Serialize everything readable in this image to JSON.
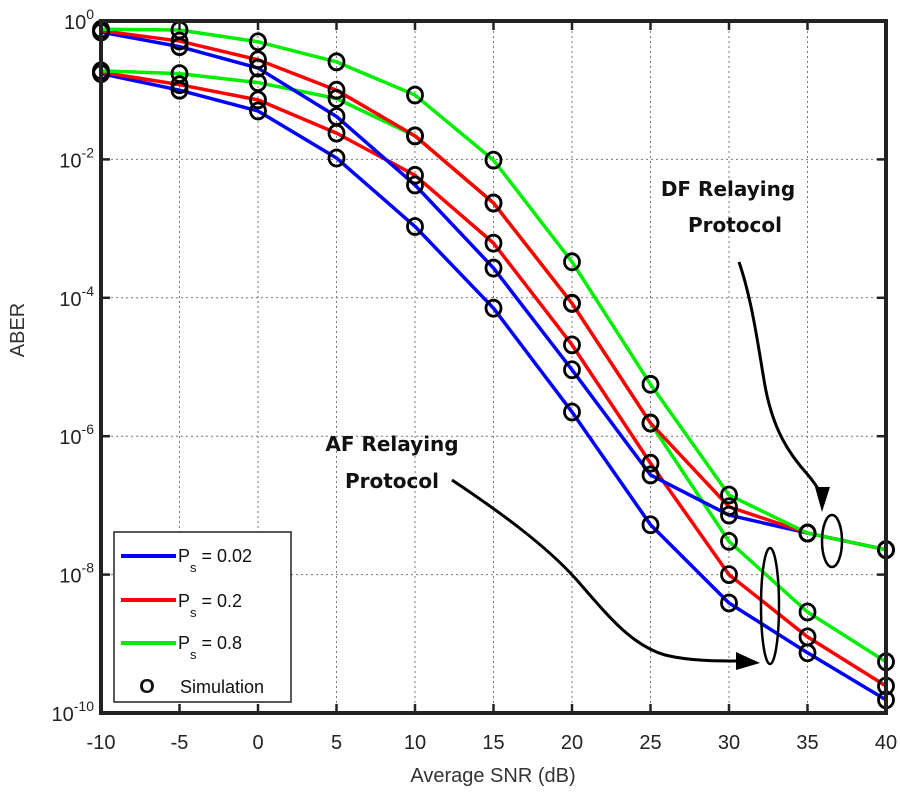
{
  "chart_data": {
    "type": "line",
    "title": "",
    "xlabel": "Average SNR (dB)",
    "ylabel": "ABER",
    "xlim": [
      -10,
      40
    ],
    "ylim_log10": [
      -10,
      0
    ],
    "yscale": "log",
    "grid": true,
    "x_ticks": [
      -10,
      -5,
      0,
      5,
      10,
      15,
      20,
      25,
      30,
      35,
      40
    ],
    "x_tick_labels": [
      "-10",
      "-5",
      "0",
      "5",
      "10",
      "15",
      "20",
      "25",
      "30",
      "35",
      "40"
    ],
    "y_ticks_log10": [
      0,
      -2,
      -4,
      -6,
      -8,
      -10
    ],
    "y_tick_labels": [
      {
        "base": "10",
        "exp": "0"
      },
      {
        "base": "10",
        "exp": "-2"
      },
      {
        "base": "10",
        "exp": "-4"
      },
      {
        "base": "10",
        "exp": "-6"
      },
      {
        "base": "10",
        "exp": "-8"
      },
      {
        "base": "10",
        "exp": "-10"
      }
    ],
    "x": [
      -10,
      -5,
      0,
      5,
      10,
      15,
      20,
      25,
      30,
      35,
      40
    ],
    "series_value_format": "log10(ABER)",
    "series": [
      {
        "name": "DF, Ps = 0.02",
        "protocol": "DF",
        "ps": "0.02",
        "color": "#0000ff",
        "log10_values": [
          -0.16,
          -0.37,
          -0.68,
          -1.38,
          -2.37,
          -3.57,
          -5.04,
          -6.56,
          -7.14,
          -7.4,
          -7.64
        ]
      },
      {
        "name": "DF, Ps = 0.2",
        "protocol": "DF",
        "ps": "0.2",
        "color": "#ff0000",
        "log10_values": [
          -0.14,
          -0.29,
          -0.56,
          -1.0,
          -1.66,
          -2.63,
          -4.08,
          -5.81,
          -7.02,
          -7.4,
          -7.64
        ]
      },
      {
        "name": "DF, Ps = 0.8",
        "protocol": "DF",
        "ps": "0.8",
        "color": "#00ee00",
        "log10_values": [
          -0.12,
          -0.13,
          -0.3,
          -0.59,
          -1.07,
          -2.01,
          -3.48,
          -5.25,
          -6.85,
          -7.4,
          -7.64
        ]
      },
      {
        "name": "AF, Ps = 0.02",
        "protocol": "AF",
        "ps": "0.02",
        "color": "#0000ff",
        "log10_values": [
          -0.76,
          -1.0,
          -1.3,
          -1.98,
          -2.97,
          -4.15,
          -5.65,
          -7.28,
          -8.41,
          -9.13,
          -9.81
        ]
      },
      {
        "name": "AF, Ps = 0.2",
        "protocol": "AF",
        "ps": "0.2",
        "color": "#ff0000",
        "log10_values": [
          -0.74,
          -0.92,
          -1.14,
          -1.62,
          -2.23,
          -3.21,
          -4.68,
          -6.39,
          -8.0,
          -8.9,
          -9.61
        ]
      },
      {
        "name": "AF, Ps = 0.8",
        "protocol": "AF",
        "ps": "0.8",
        "color": "#00ee00",
        "log10_values": [
          -0.72,
          -0.76,
          -0.89,
          -1.12,
          -1.66,
          -2.63,
          -4.08,
          -5.81,
          -7.52,
          -8.54,
          -9.26
        ]
      }
    ],
    "legend": {
      "position": "bottom-left",
      "entries": [
        {
          "symbol": "line",
          "color": "#0000ff",
          "label_main": "P",
          "label_sub": "s",
          "label_rest": " = 0.02"
        },
        {
          "symbol": "line",
          "color": "#ff0000",
          "label_main": "P",
          "label_sub": "s",
          "label_rest": " = 0.2"
        },
        {
          "symbol": "line",
          "color": "#00ee00",
          "label_main": "P",
          "label_sub": "s",
          "label_rest": " = 0.8"
        },
        {
          "symbol": "circle",
          "marker_glyph": "O",
          "label_rest": "Simulation"
        }
      ]
    },
    "annotations": [
      {
        "id": "df",
        "lines": [
          "DF Relaying",
          "Protocol"
        ]
      },
      {
        "id": "af",
        "lines": [
          "AF Relaying",
          "Protocol"
        ]
      }
    ]
  }
}
